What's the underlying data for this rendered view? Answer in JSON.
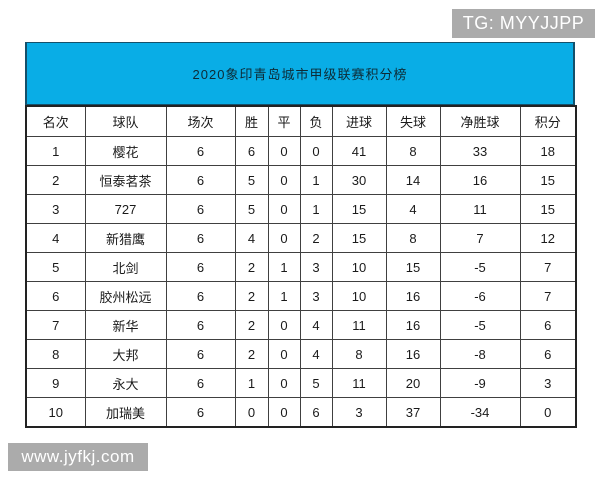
{
  "watermarks": {
    "telegram": "TG: MYYJJPP",
    "website": "www.jyfkj.com"
  },
  "colors": {
    "banner_background": "#09ade6",
    "banner_text": "#0d2b36",
    "badge_background": "#ababab",
    "badge_text": "#ffffff",
    "grid_border": "#404040"
  },
  "chart_data": {
    "type": "table",
    "title": "2020象印青岛城市甲级联赛积分榜",
    "columns": [
      "名次",
      "球队",
      "场次",
      "胜",
      "平",
      "负",
      "进球",
      "失球",
      "净胜球",
      "积分"
    ],
    "rows": [
      [
        "1",
        "樱花",
        "6",
        "6",
        "0",
        "0",
        "41",
        "8",
        "33",
        "18"
      ],
      [
        "2",
        "恒泰茗茶",
        "6",
        "5",
        "0",
        "1",
        "30",
        "14",
        "16",
        "15"
      ],
      [
        "3",
        "727",
        "6",
        "5",
        "0",
        "1",
        "15",
        "4",
        "11",
        "15"
      ],
      [
        "4",
        "新猎鹰",
        "6",
        "4",
        "0",
        "2",
        "15",
        "8",
        "7",
        "12"
      ],
      [
        "5",
        "北剑",
        "6",
        "2",
        "1",
        "3",
        "10",
        "15",
        "-5",
        "7"
      ],
      [
        "6",
        "胶州松远",
        "6",
        "2",
        "1",
        "3",
        "10",
        "16",
        "-6",
        "7"
      ],
      [
        "7",
        "新华",
        "6",
        "2",
        "0",
        "4",
        "11",
        "16",
        "-5",
        "6"
      ],
      [
        "8",
        "大邦",
        "6",
        "2",
        "0",
        "4",
        "8",
        "16",
        "-8",
        "6"
      ],
      [
        "9",
        "永大",
        "6",
        "1",
        "0",
        "5",
        "11",
        "20",
        "-9",
        "3"
      ],
      [
        "10",
        "加瑞美",
        "6",
        "0",
        "0",
        "6",
        "3",
        "37",
        "-34",
        "0"
      ]
    ]
  }
}
